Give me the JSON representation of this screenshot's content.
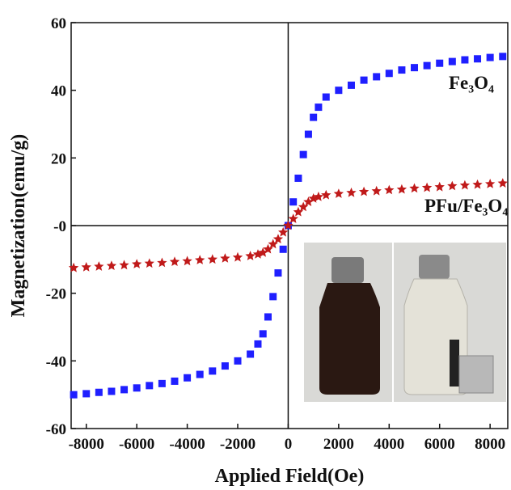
{
  "chart_data": {
    "type": "scatter",
    "x_label": "Applied Field(Oe)",
    "y_label": "Magnetization(emu/g)",
    "x": [
      -8500,
      -8000,
      -7500,
      -7000,
      -6500,
      -6000,
      -5500,
      -5000,
      -4500,
      -4000,
      -3500,
      -3000,
      -2500,
      -2000,
      -1500,
      -1200,
      -1000,
      -800,
      -600,
      -400,
      -200,
      0,
      200,
      400,
      600,
      800,
      1000,
      1200,
      1500,
      2000,
      2500,
      3000,
      3500,
      4000,
      4500,
      5000,
      5500,
      6000,
      6500,
      7000,
      7500,
      8000,
      8500
    ],
    "series": [
      {
        "name": "Fe₃O₄",
        "color": "#1f1fff",
        "marker": "square",
        "values": [
          -50,
          -49.7,
          -49.3,
          -49,
          -48.5,
          -48,
          -47.3,
          -46.7,
          -46,
          -45,
          -44,
          -43,
          -41.5,
          -40,
          -38,
          -35,
          -32,
          -27,
          -21,
          -14,
          -7,
          0,
          7,
          14,
          21,
          27,
          32,
          35,
          38,
          40,
          41.5,
          43,
          44,
          45,
          46,
          46.7,
          47.3,
          48,
          48.5,
          49,
          49.3,
          49.7,
          50
        ]
      },
      {
        "name": "PFu/Fe₃O₄",
        "color": "#c01a1a",
        "marker": "star",
        "values": [
          -12.5,
          -12.3,
          -12.1,
          -11.9,
          -11.7,
          -11.4,
          -11.2,
          -11,
          -10.7,
          -10.5,
          -10.2,
          -10,
          -9.7,
          -9.4,
          -9,
          -8.5,
          -8,
          -7,
          -5.5,
          -4,
          -2,
          0,
          2,
          4,
          5.5,
          7,
          8,
          8.5,
          9,
          9.4,
          9.7,
          10,
          10.2,
          10.5,
          10.7,
          11,
          11.2,
          11.4,
          11.7,
          11.9,
          12.1,
          12.3,
          12.5
        ]
      }
    ],
    "xlim": [
      -8600,
      8700
    ],
    "ylim": [
      -60,
      60
    ],
    "xticks": [
      -8000,
      -6000,
      -4000,
      -2000,
      0,
      2000,
      4000,
      6000,
      8000
    ],
    "yticks": [
      -60,
      -40,
      -20,
      {
        "value": 0,
        "label": "-0"
      },
      20,
      40,
      60
    ]
  }
}
